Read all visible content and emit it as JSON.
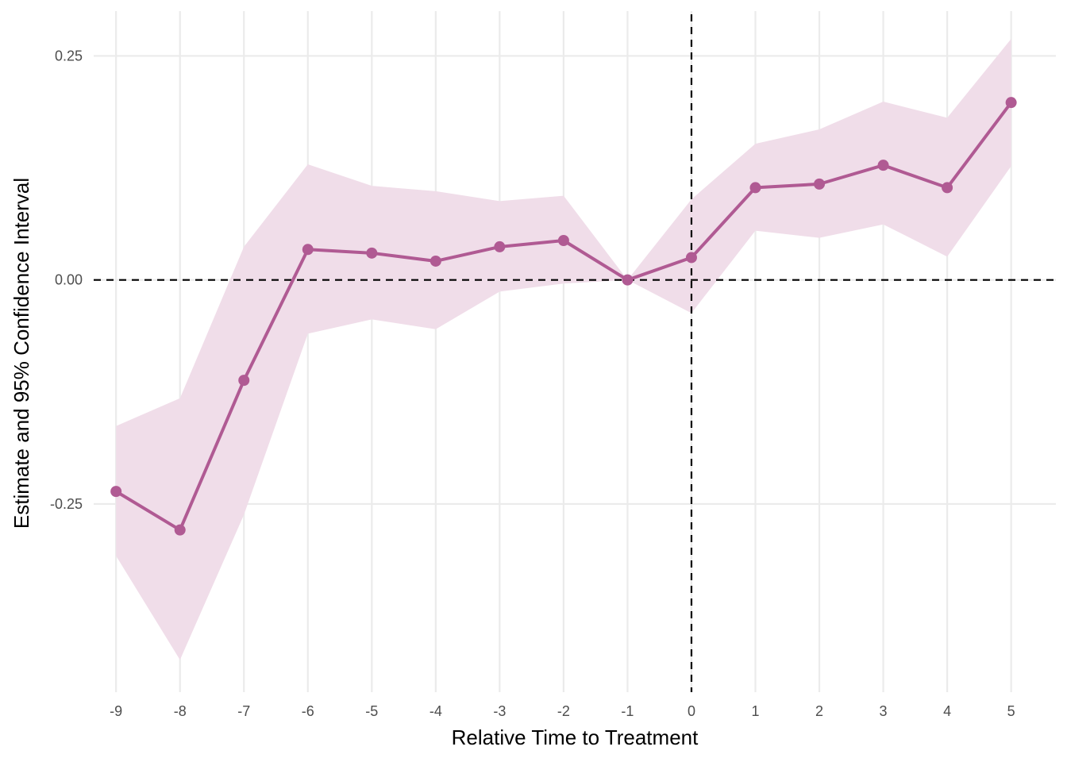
{
  "chart_data": {
    "type": "line",
    "title": "",
    "xlabel": "Relative Time to Treatment",
    "ylabel": "Estimate and 95% Confidence Interval",
    "x": [
      -9,
      -8,
      -7,
      -6,
      -5,
      -4,
      -3,
      -2,
      -1,
      0,
      1,
      2,
      3,
      4,
      5
    ],
    "x_tick_labels": [
      "-9",
      "-8",
      "-7",
      "-6",
      "-5",
      "-4",
      "-3",
      "-2",
      "-1",
      "0",
      "1",
      "2",
      "3",
      "4",
      "5"
    ],
    "y_ticks": [
      -0.25,
      0,
      0.25
    ],
    "y_tick_labels": [
      "-0.25",
      "0.00",
      "0.25"
    ],
    "xlim": [
      -9.35,
      5.7
    ],
    "ylim": [
      -0.46,
      0.3
    ],
    "grid": true,
    "reference_lines": {
      "x": 0,
      "y": 0,
      "style": "dashed"
    },
    "series": [
      {
        "values": [
          -0.236,
          -0.279,
          -0.112,
          0.034,
          0.03,
          0.021,
          0.037,
          0.044,
          0.0,
          0.025,
          0.103,
          0.107,
          0.128,
          0.103,
          0.198
        ],
        "lower": [
          -0.308,
          -0.424,
          -0.262,
          -0.06,
          -0.044,
          -0.055,
          -0.013,
          -0.004,
          0.0,
          -0.037,
          0.055,
          0.047,
          0.062,
          0.026,
          0.127
        ],
        "upper": [
          -0.163,
          -0.132,
          0.037,
          0.129,
          0.105,
          0.099,
          0.088,
          0.094,
          0.0,
          0.09,
          0.152,
          0.168,
          0.199,
          0.181,
          0.269
        ],
        "color": "#b05a93",
        "band_color": "#f0dde9"
      }
    ]
  }
}
